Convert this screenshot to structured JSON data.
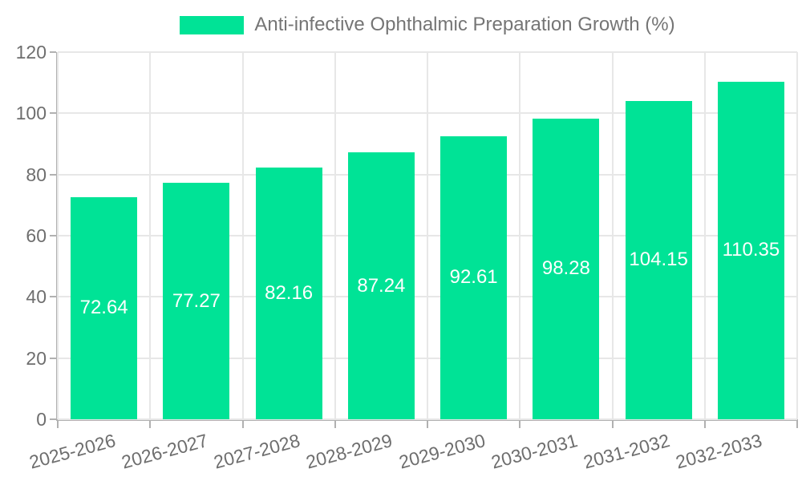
{
  "chart_data": {
    "type": "bar",
    "title": "Anti-infective Ophthalmic Preparation Growth (%)",
    "categories": [
      "2025-2026",
      "2026-2027",
      "2027-2028",
      "2028-2029",
      "2029-2030",
      "2030-2031",
      "2031-2032",
      "2032-2033"
    ],
    "series": [
      {
        "name": "Anti-infective Ophthalmic Preparation Growth (%)",
        "values": [
          72.64,
          77.27,
          82.16,
          87.24,
          92.61,
          98.28,
          104.15,
          110.35
        ]
      }
    ],
    "xlabel": "",
    "ylabel": "",
    "ylim": [
      0,
      120
    ],
    "yticks": [
      0,
      20,
      40,
      60,
      80,
      100,
      120
    ],
    "grid": true,
    "legend_position": "top",
    "bar_color": "#00E396",
    "value_label_color": "#ffffff"
  },
  "legend": {
    "label": "Anti-infective Ophthalmic Preparation Growth (%)",
    "swatch_color": "#00E396"
  },
  "colors": {
    "bar": "#00E396",
    "legend_text": "#757575",
    "axis_label": "#6e6e6e",
    "gridline": "#e7e7e7",
    "axis_line": "#b1b1b1",
    "background": "#ffffff"
  }
}
